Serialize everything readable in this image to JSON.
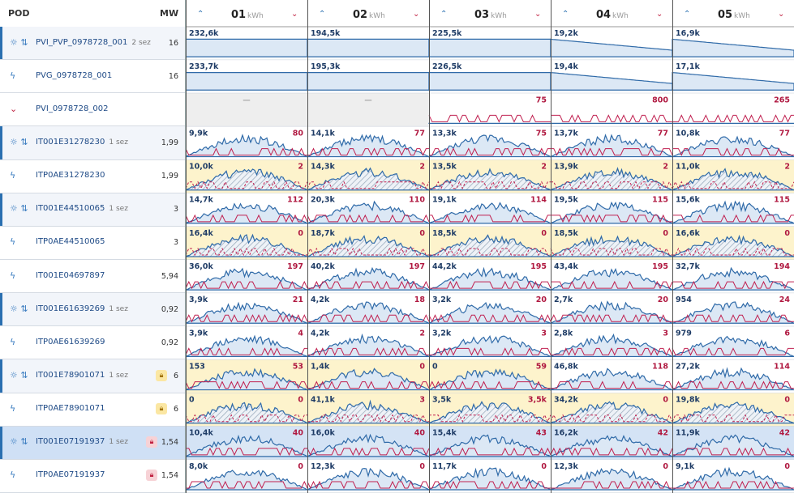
{
  "header": {
    "pod": "POD",
    "mw": "MW",
    "days": [
      {
        "label": "01",
        "unit": "kWh"
      },
      {
        "label": "02",
        "unit": "kWh"
      },
      {
        "label": "03",
        "unit": "kWh"
      },
      {
        "label": "04",
        "unit": "kWh"
      },
      {
        "label": "05",
        "unit": "kWh"
      }
    ]
  },
  "rows": [
    {
      "name": "PVI_PVP_0978728_001",
      "sez": "2 sez",
      "mw": "16",
      "days": [
        {
          "peak": "232,6k",
          "max": null
        },
        {
          "peak": "194,5k",
          "max": null
        },
        {
          "peak": "225,5k",
          "max": null
        },
        {
          "peak": "19,2k",
          "max": null
        },
        {
          "peak": "16,9k",
          "max": null
        }
      ]
    },
    {
      "name": "PVG_0978728_001",
      "sez": null,
      "mw": "16",
      "days": [
        {
          "peak": "233,7k",
          "max": null
        },
        {
          "peak": "195,3k",
          "max": null
        },
        {
          "peak": "226,5k",
          "max": null
        },
        {
          "peak": "19,4k",
          "max": null
        },
        {
          "peak": "17,1k",
          "max": null
        }
      ]
    },
    {
      "name": "PVI_0978728_002",
      "sez": null,
      "mw": null,
      "days": [
        {
          "peak": "—",
          "max": null
        },
        {
          "peak": "—",
          "max": null
        },
        {
          "peak": null,
          "max": "75"
        },
        {
          "peak": null,
          "max": "800"
        },
        {
          "peak": null,
          "max": "265"
        }
      ]
    },
    {
      "name": "IT001E31278230",
      "sez": "1 sez",
      "mw": "1,99",
      "days": [
        {
          "peak": "9,9k",
          "max": "80"
        },
        {
          "peak": "14,1k",
          "max": "77"
        },
        {
          "peak": "13,3k",
          "max": "75"
        },
        {
          "peak": "13,7k",
          "max": "77"
        },
        {
          "peak": "10,8k",
          "max": "77"
        }
      ]
    },
    {
      "name": "ITP0AE31278230",
      "sez": null,
      "mw": "1,99",
      "days": [
        {
          "peak": "10,0k",
          "max": "2"
        },
        {
          "peak": "14,3k",
          "max": "2"
        },
        {
          "peak": "13,5k",
          "max": "2"
        },
        {
          "peak": "13,9k",
          "max": "2"
        },
        {
          "peak": "11,0k",
          "max": "2"
        }
      ]
    },
    {
      "name": "IT001E44510065",
      "sez": "1 sez",
      "mw": "3",
      "days": [
        {
          "peak": "14,7k",
          "max": "112"
        },
        {
          "peak": "20,3k",
          "max": "110"
        },
        {
          "peak": "19,1k",
          "max": "114"
        },
        {
          "peak": "19,5k",
          "max": "115"
        },
        {
          "peak": "15,6k",
          "max": "115"
        }
      ]
    },
    {
      "name": "ITP0AE44510065",
      "sez": null,
      "mw": "3",
      "days": [
        {
          "peak": "16,4k",
          "max": "0"
        },
        {
          "peak": "18,7k",
          "max": "0"
        },
        {
          "peak": "18,5k",
          "max": "0"
        },
        {
          "peak": "18,5k",
          "max": "0"
        },
        {
          "peak": "16,6k",
          "max": "0"
        }
      ]
    },
    {
      "name": "IT001E04697897",
      "sez": null,
      "mw": "5,94",
      "days": [
        {
          "peak": "36,0k",
          "max": "197"
        },
        {
          "peak": "40,2k",
          "max": "197"
        },
        {
          "peak": "44,2k",
          "max": "195"
        },
        {
          "peak": "43,4k",
          "max": "195"
        },
        {
          "peak": "32,7k",
          "max": "194"
        }
      ]
    },
    {
      "name": "IT001E61639269",
      "sez": "1 sez",
      "mw": "0,92",
      "days": [
        {
          "peak": "3,9k",
          "max": "21"
        },
        {
          "peak": "4,2k",
          "max": "18"
        },
        {
          "peak": "3,2k",
          "max": "20"
        },
        {
          "peak": "2,7k",
          "max": "20"
        },
        {
          "peak": "954",
          "max": "24"
        }
      ]
    },
    {
      "name": "ITP0AE61639269",
      "sez": null,
      "mw": "0,92",
      "days": [
        {
          "peak": "3,9k",
          "max": "4"
        },
        {
          "peak": "4,2k",
          "max": "2"
        },
        {
          "peak": "3,2k",
          "max": "3"
        },
        {
          "peak": "2,8k",
          "max": "3"
        },
        {
          "peak": "979",
          "max": "6"
        }
      ]
    },
    {
      "name": "IT001E78901071",
      "sez": "1 sez",
      "mw": "6",
      "days": [
        {
          "peak": "153",
          "max": "53"
        },
        {
          "peak": "1,4k",
          "max": "0"
        },
        {
          "peak": "0",
          "max": "59"
        },
        {
          "peak": "46,8k",
          "max": "118"
        },
        {
          "peak": "27,2k",
          "max": "114"
        }
      ]
    },
    {
      "name": "ITP0AE78901071",
      "sez": null,
      "mw": "6",
      "days": [
        {
          "peak": "0",
          "max": "0"
        },
        {
          "peak": "41,1k",
          "max": "3"
        },
        {
          "peak": "3,5k",
          "max": "3,5k"
        },
        {
          "peak": "34,2k",
          "max": "0"
        },
        {
          "peak": "19,8k",
          "max": "0"
        }
      ]
    },
    {
      "name": "IT001E07191937",
      "sez": "1 sez",
      "mw": "1,54",
      "days": [
        {
          "peak": "10,4k",
          "max": "40"
        },
        {
          "peak": "16,0k",
          "max": "40"
        },
        {
          "peak": "15,4k",
          "max": "43"
        },
        {
          "peak": "16,2k",
          "max": "42"
        },
        {
          "peak": "11,9k",
          "max": "42"
        }
      ]
    },
    {
      "name": "ITP0AE07191937",
      "sez": null,
      "mw": "1,54",
      "days": [
        {
          "peak": "8,0k",
          "max": "0"
        },
        {
          "peak": "12,3k",
          "max": "0"
        },
        {
          "peak": "11,7k",
          "max": "0"
        },
        {
          "peak": "12,3k",
          "max": "0"
        },
        {
          "peak": "9,1k",
          "max": "0"
        }
      ]
    }
  ]
}
